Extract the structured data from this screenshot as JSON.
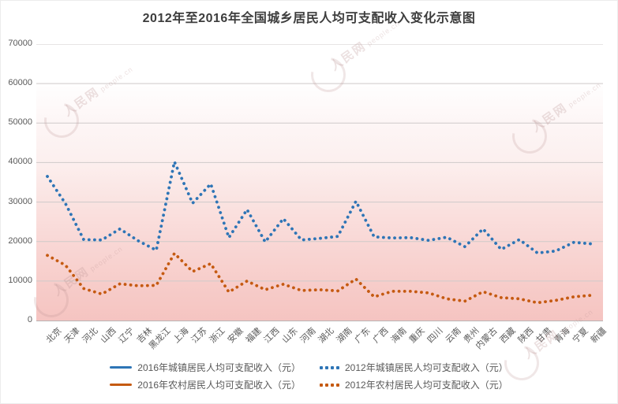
{
  "chart_data": {
    "type": "line",
    "title": "2012年至2016年全国城乡居民人均可支配收入变化示意图",
    "categories": [
      "北京",
      "天津",
      "河北",
      "山西",
      "辽宁",
      "吉林",
      "黑龙江",
      "上海",
      "江苏",
      "浙江",
      "安徽",
      "福建",
      "江西",
      "山东",
      "河南",
      "湖北",
      "湖南",
      "广东",
      "广西",
      "海南",
      "重庆",
      "四川",
      "云南",
      "贵州",
      "内蒙古",
      "西藏",
      "陕西",
      "甘肃",
      "青海",
      "宁夏",
      "新疆"
    ],
    "series": [
      {
        "key": "urban-2016",
        "name": "2016年城镇居民人均可支配收入（元）",
        "color": "#2E75B6",
        "style": "solid",
        "plotted": false,
        "values": []
      },
      {
        "key": "urban-2012",
        "name": "2012年城镇居民人均可支配收入（元）",
        "color": "#2E75B6",
        "style": "dotted",
        "plotted": true,
        "values": [
          36500,
          29600,
          20500,
          20400,
          23200,
          20200,
          17800,
          40200,
          29700,
          34600,
          21000,
          28100,
          19900,
          25800,
          20400,
          20800,
          21300,
          30200,
          21200,
          20900,
          21000,
          20300,
          21100,
          18700,
          23200,
          18000,
          20500,
          17100,
          17600,
          19800,
          19400
        ]
      },
      {
        "key": "rural-2016",
        "name": "2016年农村居民人均可支配收入（元）",
        "color": "#C55A11",
        "style": "solid",
        "plotted": false,
        "values": []
      },
      {
        "key": "rural-2012",
        "name": "2012年农村居民人均可支配收入（元）",
        "color": "#C55A11",
        "style": "dotted",
        "plotted": true,
        "values": [
          16500,
          14000,
          8100,
          6700,
          9300,
          8800,
          8900,
          17000,
          12400,
          14400,
          7200,
          10000,
          7800,
          9200,
          7600,
          7800,
          7500,
          10500,
          6000,
          7400,
          7400,
          7000,
          5500,
          4900,
          7300,
          5800,
          5500,
          4500,
          5100,
          6000,
          6400
        ]
      }
    ],
    "ylim": [
      0,
      70000
    ],
    "ytick_step": 10000,
    "ytick_labels": [
      "0",
      "10000",
      "20000",
      "30000",
      "40000",
      "50000",
      "60000",
      "70000"
    ],
    "grid": true,
    "legend_position": "bottom",
    "legend_rows": [
      [
        0,
        1
      ],
      [
        2,
        3
      ]
    ],
    "watermark": {
      "text": "人民网",
      "subtext": "people.cn"
    }
  }
}
